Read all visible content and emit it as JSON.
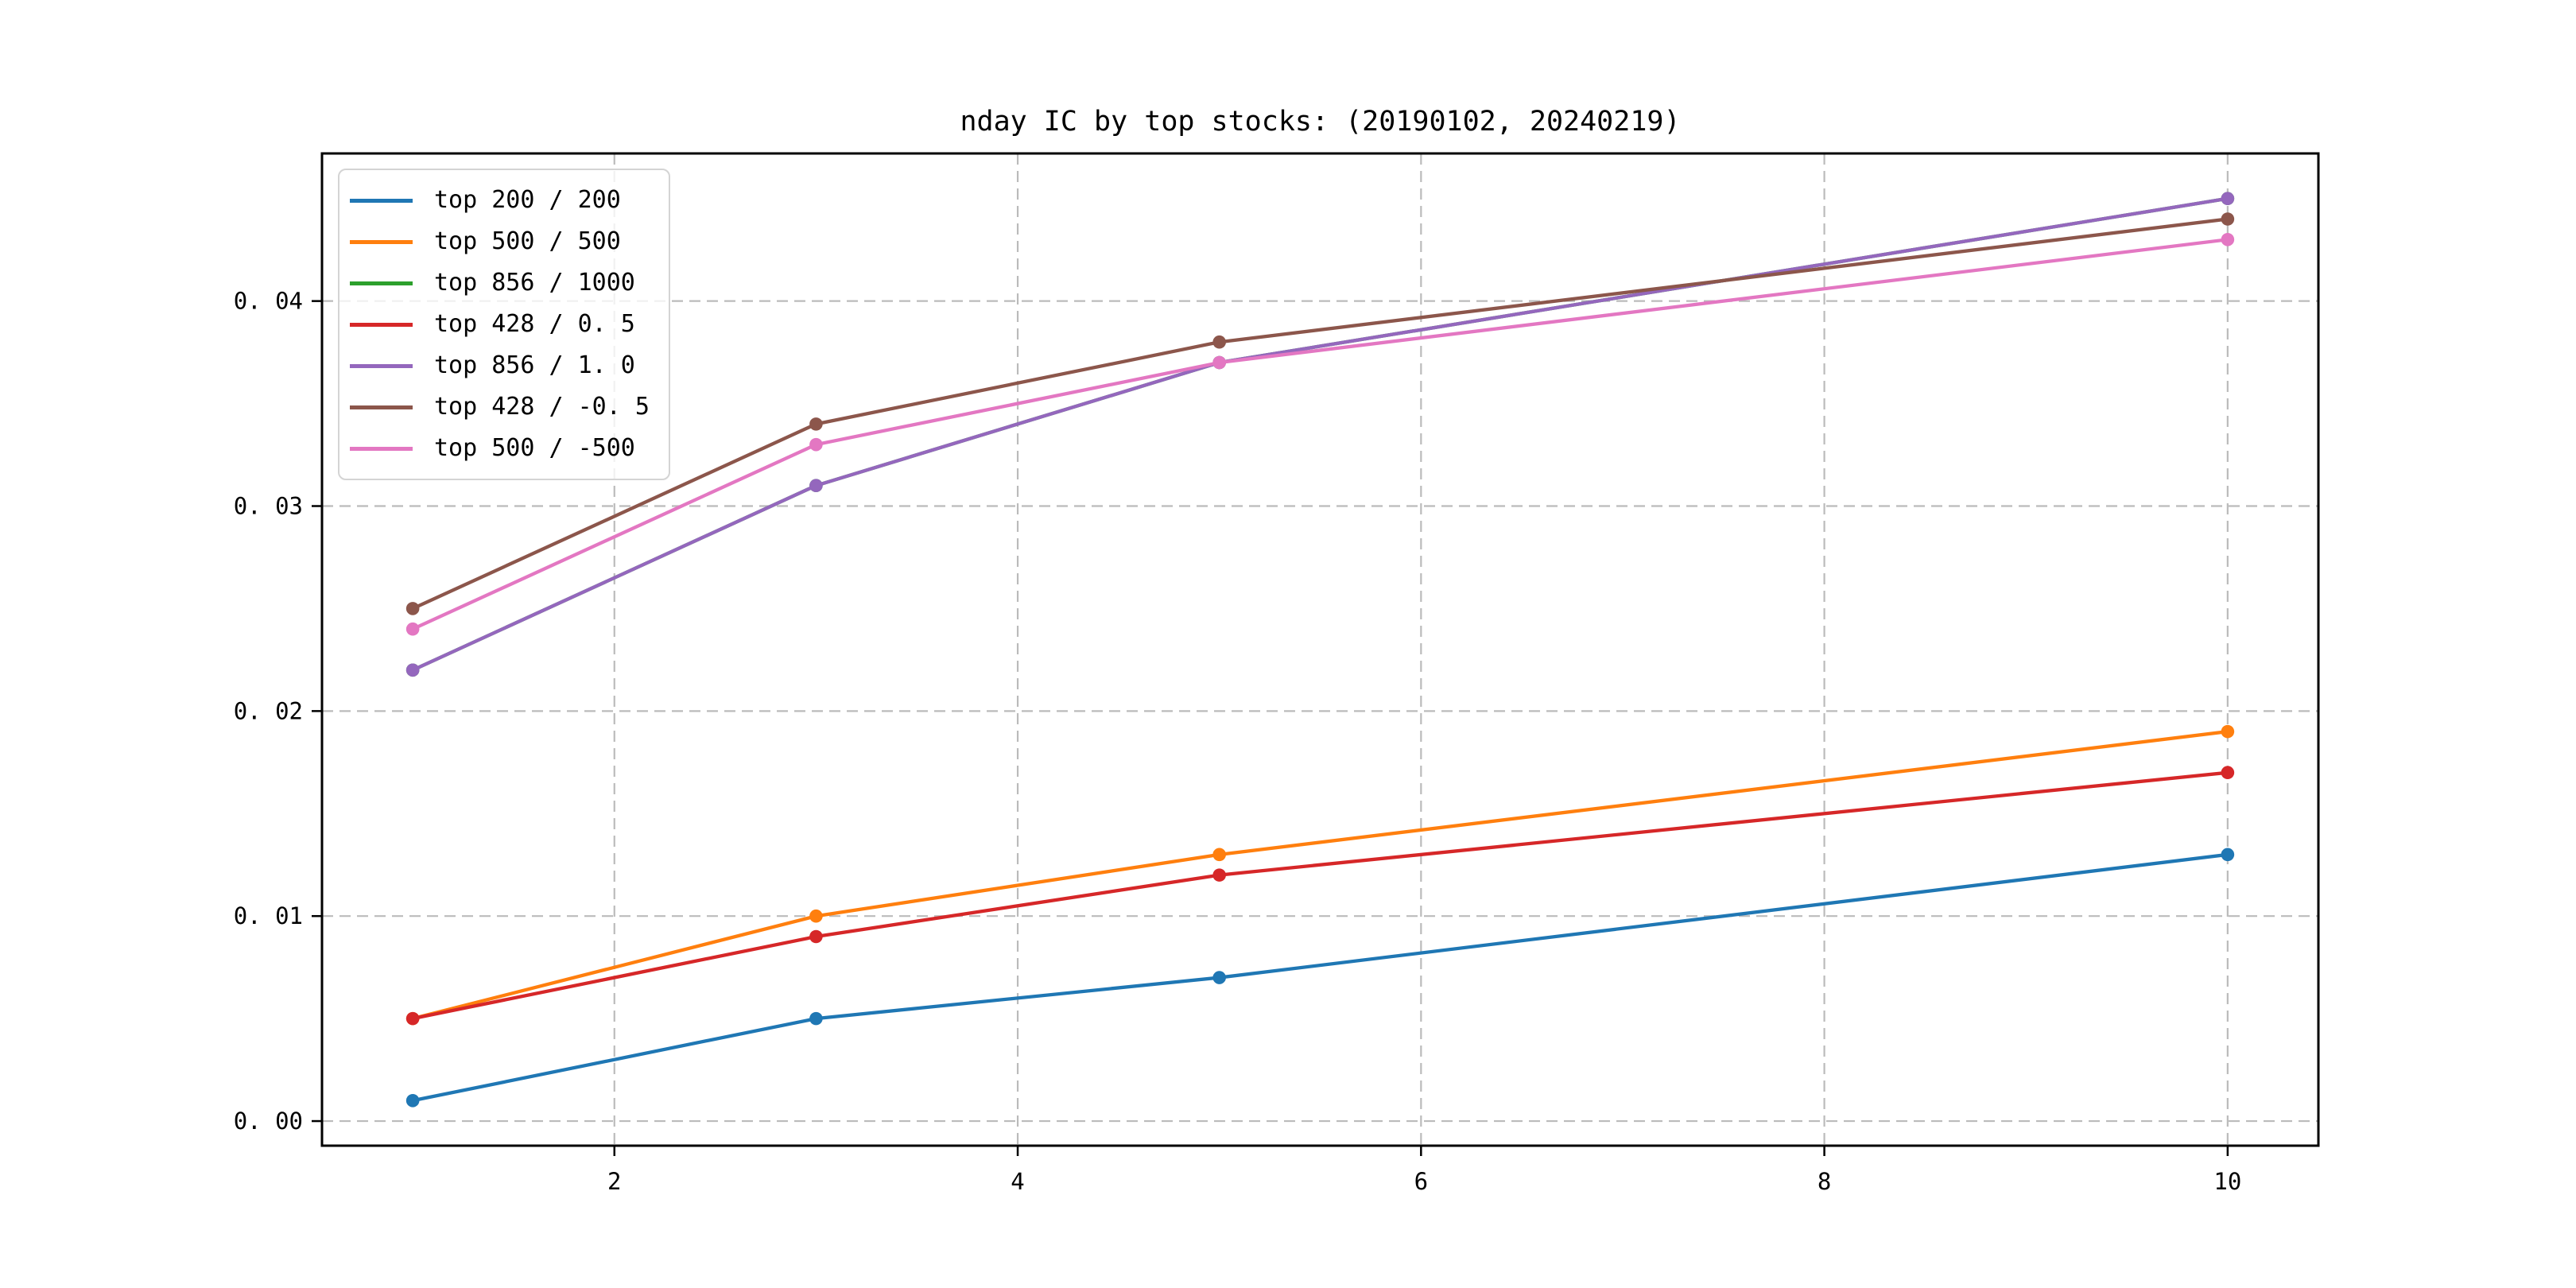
{
  "figure": {
    "background": "#ffffff"
  },
  "chart_data": {
    "type": "line",
    "title": "nday IC by top stocks: (20190102, 20240219)",
    "x": [
      1,
      3,
      5,
      10
    ],
    "series": [
      {
        "name": "top 200 / 200",
        "color": "#1f77b4",
        "values": [
          0.001,
          0.005,
          0.007,
          0.013
        ]
      },
      {
        "name": "top 500 / 500",
        "color": "#ff7f0e",
        "values": [
          0.005,
          0.01,
          0.013,
          0.019
        ]
      },
      {
        "name": "top 856 / 1000",
        "color": "#2ca02c",
        "values": [
          0.022,
          0.031,
          0.037,
          0.045
        ]
      },
      {
        "name": "top 428 / 0.5",
        "color": "#d62728",
        "values": [
          0.005,
          0.009,
          0.012,
          0.017
        ]
      },
      {
        "name": "top 856 / 1.0",
        "color": "#9467bd",
        "values": [
          0.022,
          0.031,
          0.037,
          0.045
        ]
      },
      {
        "name": "top 428 / -0.5",
        "color": "#8c564b",
        "values": [
          0.025,
          0.034,
          0.038,
          0.044
        ]
      },
      {
        "name": "top 500 / -500",
        "color": "#e377c2",
        "values": [
          0.024,
          0.033,
          0.037,
          0.043
        ]
      }
    ],
    "marker": "o",
    "xlabel": "",
    "ylabel": "",
    "xlim": [
      0.55,
      10.45
    ],
    "ylim": [
      -0.0012,
      0.0472
    ],
    "xticks": [
      2,
      4,
      6,
      8,
      10
    ],
    "yticks": [
      0.0,
      0.01,
      0.02,
      0.03,
      0.04
    ],
    "grid": true,
    "grid_style": "dashed",
    "legend_position": "upper left"
  },
  "axes": {
    "xtick_labels": [
      "2",
      "4",
      "6",
      "8",
      "10"
    ],
    "ytick_labels": [
      "0. 00",
      "0. 01",
      "0. 02",
      "0. 03",
      "0. 04"
    ]
  },
  "legend": {
    "items": [
      {
        "label": "top 200 / 200",
        "color": "#1f77b4"
      },
      {
        "label": "top 500 / 500",
        "color": "#ff7f0e"
      },
      {
        "label": "top 856 / 1000",
        "color": "#2ca02c"
      },
      {
        "label": "top 428 / 0. 5",
        "color": "#d62728"
      },
      {
        "label": "top 856 / 1. 0",
        "color": "#9467bd"
      },
      {
        "label": "top 428 / -0. 5",
        "color": "#8c564b"
      },
      {
        "label": "top 500 / -500",
        "color": "#e377c2"
      }
    ]
  },
  "colors": {
    "grid": "#b0b0b0",
    "spine": "#000000",
    "tick_text": "#000000",
    "legend_border": "#d4d4d4",
    "background": "#ffffff"
  }
}
